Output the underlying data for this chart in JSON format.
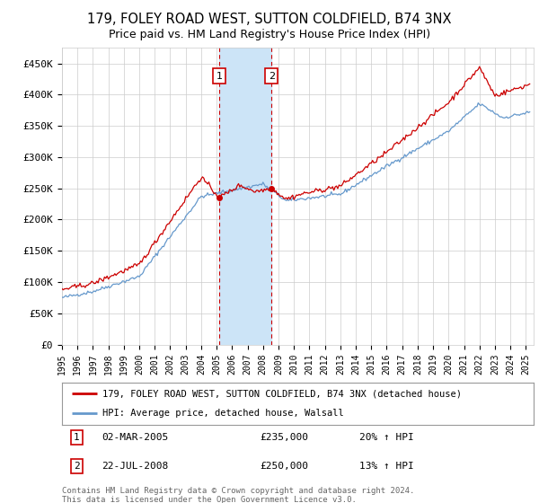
{
  "title": "179, FOLEY ROAD WEST, SUTTON COLDFIELD, B74 3NX",
  "subtitle": "Price paid vs. HM Land Registry's House Price Index (HPI)",
  "ylabel_ticks": [
    "£0",
    "£50K",
    "£100K",
    "£150K",
    "£200K",
    "£250K",
    "£300K",
    "£350K",
    "£400K",
    "£450K"
  ],
  "ytick_values": [
    0,
    50000,
    100000,
    150000,
    200000,
    250000,
    300000,
    350000,
    400000,
    450000
  ],
  "ylim": [
    0,
    475000
  ],
  "xlim_start": 1995.0,
  "xlim_end": 2025.5,
  "sale1_x": 2005.17,
  "sale1_y": 235000,
  "sale2_x": 2008.55,
  "sale2_y": 250000,
  "shade_color": "#cce4f7",
  "vline_color": "#cc0000",
  "legend_label_red": "179, FOLEY ROAD WEST, SUTTON COLDFIELD, B74 3NX (detached house)",
  "legend_label_blue": "HPI: Average price, detached house, Walsall",
  "footer": "Contains HM Land Registry data © Crown copyright and database right 2024.\nThis data is licensed under the Open Government Licence v3.0.",
  "red_line_color": "#cc0000",
  "blue_line_color": "#6699cc",
  "grid_color": "#cccccc",
  "background_color": "#ffffff"
}
